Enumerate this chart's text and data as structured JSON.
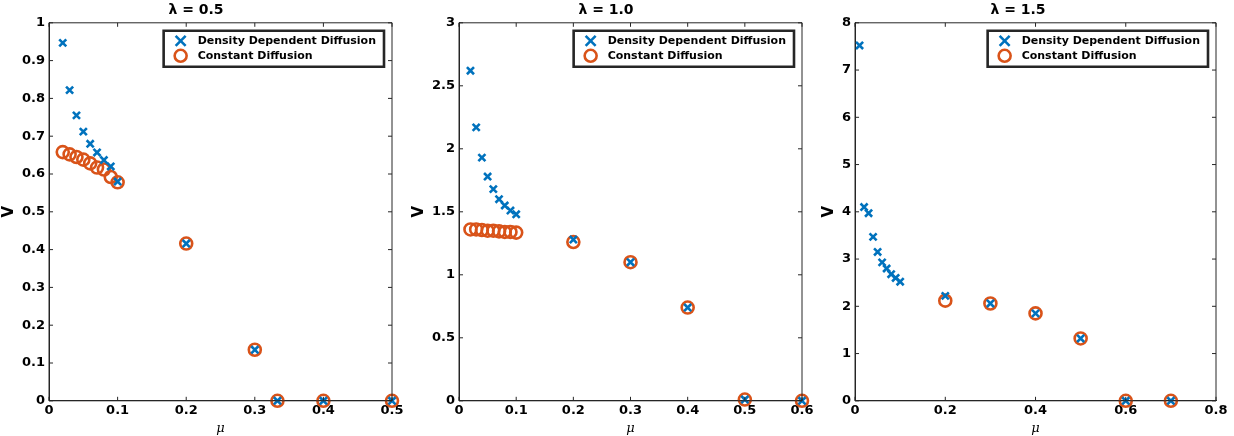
{
  "chart_data": [
    {
      "type": "scatter",
      "title": "λ = 0.5",
      "xlabel": "μ",
      "ylabel": "V",
      "xlim": [
        0,
        0.5
      ],
      "xticks": [
        0,
        0.1,
        0.2,
        0.3,
        0.4,
        0.5
      ],
      "ylim": [
        0,
        1
      ],
      "yticks": [
        0,
        0.1,
        0.2,
        0.3,
        0.4,
        0.5,
        0.6,
        0.7,
        0.8,
        0.9,
        1
      ],
      "legend": "top right",
      "grid": false,
      "series": [
        {
          "name": "Density Dependent Diffusion",
          "color": "#0072bd",
          "marker": "cross",
          "x": [
            0.02,
            0.03,
            0.04,
            0.05,
            0.06,
            0.07,
            0.08,
            0.09,
            0.1,
            0.2,
            0.3,
            0.333,
            0.4,
            0.5
          ],
          "values": [
            0.947,
            0.822,
            0.755,
            0.712,
            0.68,
            0.657,
            0.637,
            0.62,
            0.58,
            0.416,
            0.135,
            0,
            0,
            0
          ]
        },
        {
          "name": "Constant Diffusion",
          "color": "#d95319",
          "marker": "circle",
          "x": [
            0.02,
            0.03,
            0.04,
            0.05,
            0.06,
            0.07,
            0.08,
            0.09,
            0.1,
            0.2,
            0.3,
            0.333,
            0.4,
            0.5
          ],
          "values": [
            0.658,
            0.652,
            0.645,
            0.638,
            0.628,
            0.617,
            0.612,
            0.592,
            0.578,
            0.416,
            0.135,
            0,
            0,
            0
          ]
        }
      ]
    },
    {
      "type": "scatter",
      "title": "λ = 1.0",
      "xlabel": "μ",
      "ylabel": "V",
      "xlim": [
        0,
        0.6
      ],
      "xticks": [
        0,
        0.1,
        0.2,
        0.3,
        0.4,
        0.5,
        0.6
      ],
      "ylim": [
        0,
        3
      ],
      "yticks": [
        0,
        0.5,
        1,
        1.5,
        2,
        2.5,
        3
      ],
      "legend": "top right",
      "grid": false,
      "series": [
        {
          "name": "Density Dependent Diffusion",
          "color": "#0072bd",
          "marker": "cross",
          "x": [
            0.02,
            0.03,
            0.04,
            0.05,
            0.06,
            0.07,
            0.08,
            0.09,
            0.1,
            0.2,
            0.3,
            0.4,
            0.5,
            0.6
          ],
          "values": [
            2.62,
            2.17,
            1.93,
            1.78,
            1.68,
            1.6,
            1.55,
            1.51,
            1.48,
            1.28,
            1.1,
            0.74,
            0.01,
            0
          ]
        },
        {
          "name": "Constant Diffusion",
          "color": "#d95319",
          "marker": "circle",
          "x": [
            0.02,
            0.03,
            0.04,
            0.05,
            0.06,
            0.07,
            0.08,
            0.09,
            0.1,
            0.2,
            0.3,
            0.4,
            0.5,
            0.6
          ],
          "values": [
            1.36,
            1.36,
            1.355,
            1.35,
            1.35,
            1.345,
            1.34,
            1.34,
            1.335,
            1.26,
            1.1,
            0.74,
            0.01,
            0
          ]
        }
      ]
    },
    {
      "type": "scatter",
      "title": "λ = 1.5",
      "xlabel": "μ",
      "ylabel": "V",
      "xlim": [
        0,
        0.8
      ],
      "xticks": [
        0,
        0.2,
        0.4,
        0.6,
        0.8
      ],
      "ylim": [
        0,
        8
      ],
      "yticks": [
        0,
        1,
        2,
        3,
        4,
        5,
        6,
        7,
        8
      ],
      "legend": "top right",
      "grid": false,
      "series": [
        {
          "name": "Density Dependent Diffusion",
          "color": "#0072bd",
          "marker": "cross",
          "x": [
            0.01,
            0.02,
            0.03,
            0.04,
            0.05,
            0.06,
            0.07,
            0.08,
            0.09,
            0.1,
            0.2,
            0.3,
            0.4,
            0.5,
            0.6,
            0.7
          ],
          "values": [
            7.52,
            4.1,
            3.97,
            3.47,
            3.15,
            2.93,
            2.8,
            2.68,
            2.6,
            2.52,
            2.22,
            2.06,
            1.85,
            1.32,
            0,
            0
          ]
        },
        {
          "name": "Constant Diffusion",
          "color": "#d95319",
          "marker": "circle",
          "x": [
            0.2,
            0.3,
            0.4,
            0.5,
            0.6,
            0.7
          ],
          "values": [
            2.12,
            2.06,
            1.85,
            1.32,
            0,
            0
          ]
        }
      ]
    }
  ]
}
